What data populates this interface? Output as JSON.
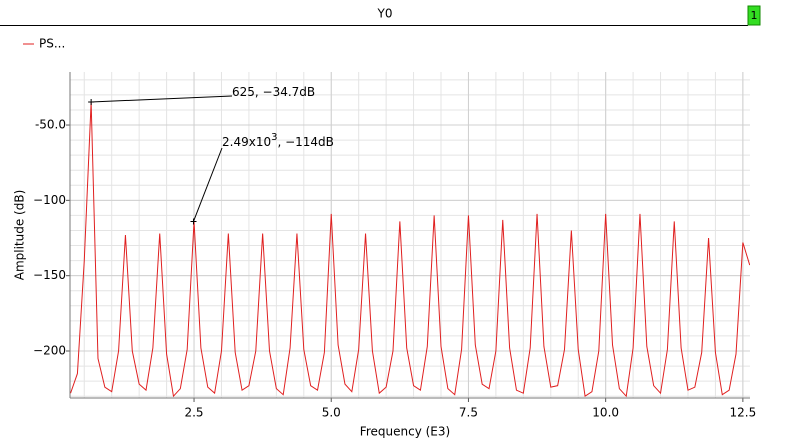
{
  "header": {
    "title": "Y0",
    "badge": "1"
  },
  "chart_data": {
    "type": "line",
    "x_label": "Frequency (E3)",
    "y_label": "Amplitude (dB)",
    "xlim": [
      0.24,
      12.63
    ],
    "ylim": [
      -231.2,
      -14.8
    ],
    "xticks": [
      2.5,
      {
        "value": 5,
        "label": "5.0"
      },
      7.5,
      {
        "value": 10,
        "label": "10.0"
      },
      12.5
    ],
    "yticks": [
      {
        "value": -50,
        "label": "-50.0"
      },
      {
        "value": -100,
        "label": "−100"
      },
      {
        "value": -150,
        "label": "−150"
      },
      {
        "value": -200,
        "label": "−200"
      }
    ],
    "grid": true,
    "series": [
      {
        "name": "PS...",
        "color": "#e02020",
        "x": [
          0.25,
          0.375,
          0.5,
          0.625,
          0.75,
          0.875,
          1,
          1.125,
          1.25,
          1.375,
          1.5,
          1.625,
          1.75,
          1.875,
          2,
          2.125,
          2.25,
          2.375,
          2.5,
          2.625,
          2.75,
          2.875,
          3,
          3.125,
          3.25,
          3.375,
          3.5,
          3.625,
          3.75,
          3.875,
          4,
          4.125,
          4.25,
          4.375,
          4.5,
          4.625,
          4.75,
          4.875,
          5,
          5.125,
          5.25,
          5.375,
          5.5,
          5.625,
          5.75,
          5.875,
          6,
          6.125,
          6.25,
          6.375,
          6.5,
          6.625,
          6.75,
          6.875,
          7,
          7.125,
          7.25,
          7.375,
          7.5,
          7.625,
          7.75,
          7.875,
          8,
          8.125,
          8.25,
          8.375,
          8.5,
          8.625,
          8.75,
          8.875,
          9,
          9.125,
          9.25,
          9.375,
          9.5,
          9.625,
          9.75,
          9.875,
          10,
          10.125,
          10.25,
          10.375,
          10.5,
          10.625,
          10.75,
          10.875,
          11,
          11.125,
          11.25,
          11.375,
          11.5,
          11.625,
          11.75,
          11.875,
          12,
          12.125,
          12.25,
          12.375,
          12.5,
          12.625
        ],
        "values": [
          -228,
          -215,
          -140,
          -34.7,
          -205,
          -224,
          -227,
          -200,
          -123,
          -200,
          -222,
          -226,
          -198,
          -122,
          -202,
          -230,
          -225,
          -199,
          -114,
          -198,
          -224,
          -228,
          -200,
          -122,
          -201,
          -226,
          -223,
          -200,
          -122,
          -200,
          -225,
          -229,
          -198,
          -122,
          -199,
          -223,
          -226,
          -201,
          -109,
          -196,
          -222,
          -227,
          -199,
          -122,
          -200,
          -228,
          -224,
          -200,
          -114,
          -198,
          -223,
          -226,
          -197,
          -110,
          -197,
          -225,
          -229,
          -199,
          -110,
          -196,
          -222,
          -225,
          -200,
          -113,
          -198,
          -226,
          -228,
          -198,
          -109,
          -197,
          -224,
          -223,
          -199,
          -120,
          -199,
          -230,
          -227,
          -200,
          -109,
          -196,
          -225,
          -230,
          -198,
          -109,
          -197,
          -223,
          -228,
          -199,
          -114,
          -198,
          -226,
          -224,
          -201,
          -125,
          -201,
          -229,
          -226,
          -202,
          -128,
          -143
        ]
      }
    ],
    "annotations": [
      {
        "x": 0.625,
        "y": -34.7,
        "text": "625, −34.7dB"
      },
      {
        "x": 2.49,
        "y": -114,
        "text": "2.49x10",
        "sup": "3",
        "rest": ", −114dB"
      }
    ]
  }
}
